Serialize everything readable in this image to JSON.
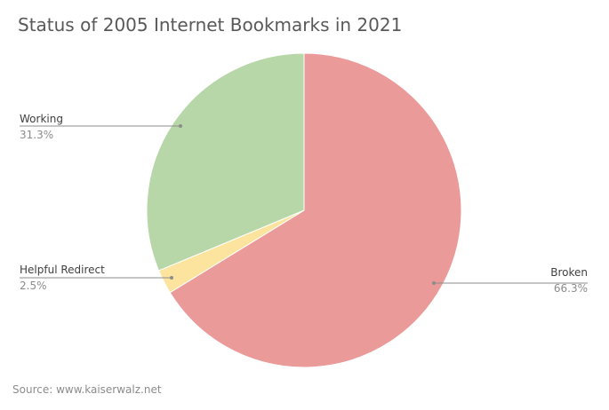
{
  "chart_data": {
    "type": "pie",
    "title": "Status of 2005 Internet Bookmarks in 2021",
    "source": "Source: www.kaiserwalz.net",
    "slices": [
      {
        "name": "Broken",
        "value": 66.3,
        "label": "66.3%",
        "color": "#ea9a99",
        "side": "right"
      },
      {
        "name": "Helpful Redirect",
        "value": 2.5,
        "label": "2.5%",
        "color": "#fce49e",
        "side": "left"
      },
      {
        "name": "Working",
        "value": 31.3,
        "label": "31.3%",
        "color": "#b7d7a8",
        "side": "left"
      }
    ],
    "legend": "none"
  }
}
